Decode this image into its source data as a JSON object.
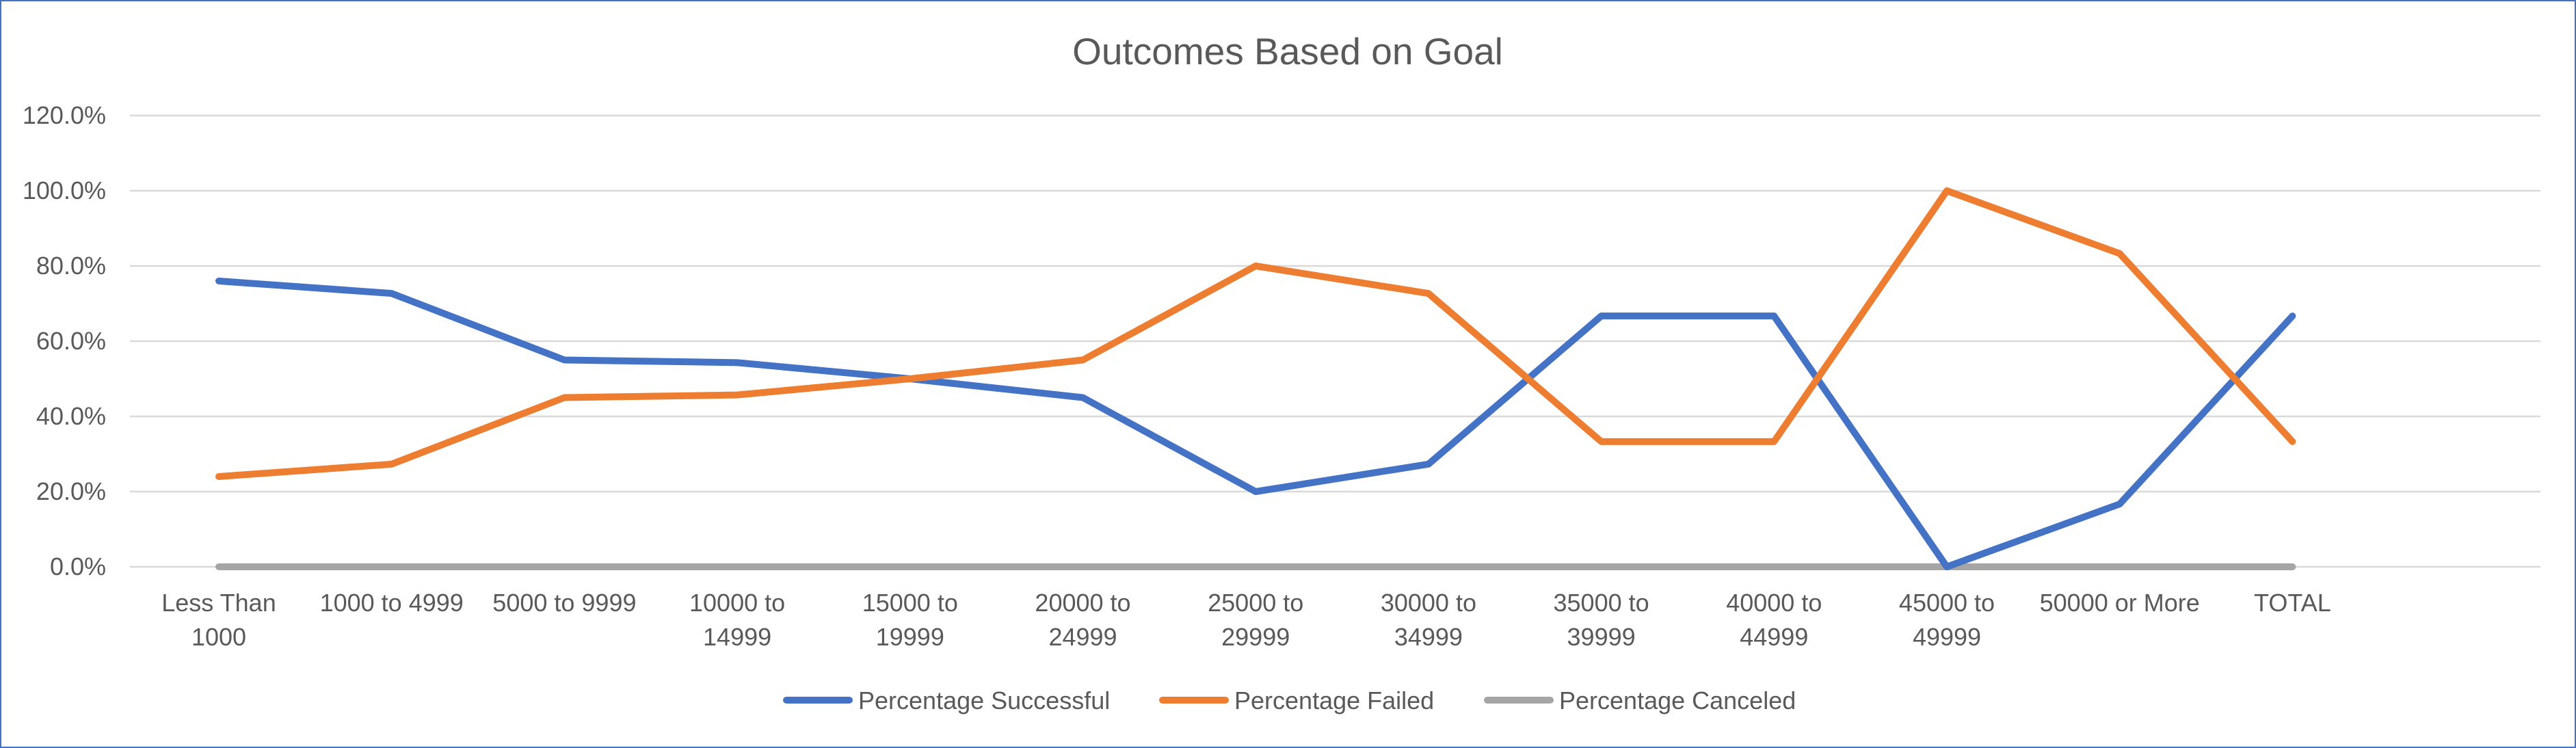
{
  "chart_data": {
    "type": "line",
    "title": "Outcomes Based on Goal",
    "xlabel": "",
    "ylabel": "",
    "ylim": [
      0,
      1.2
    ],
    "y_ticks": [
      "0.0%",
      "20.0%",
      "40.0%",
      "60.0%",
      "80.0%",
      "100.0%",
      "120.0%"
    ],
    "y_tick_values": [
      0,
      0.2,
      0.4,
      0.6,
      0.8,
      1.0,
      1.2
    ],
    "grid": true,
    "legend_position": "bottom",
    "categories": [
      [
        "Less Than",
        "1000"
      ],
      [
        "1000 to 4999"
      ],
      [
        "5000 to 9999"
      ],
      [
        "10000 to",
        "14999"
      ],
      [
        "15000 to",
        "19999"
      ],
      [
        "20000 to",
        "24999"
      ],
      [
        "25000 to",
        "29999"
      ],
      [
        "30000 to",
        "34999"
      ],
      [
        "35000 to",
        "39999"
      ],
      [
        "40000 to",
        "44999"
      ],
      [
        "45000 to",
        "49999"
      ],
      [
        "50000 or More"
      ],
      [
        "TOTAL"
      ]
    ],
    "series": [
      {
        "name": "Percentage Successful",
        "color": "#4472c4",
        "values": [
          0.76,
          0.727,
          0.55,
          0.543,
          0.5,
          0.45,
          0.2,
          0.273,
          0.667,
          0.667,
          0.0,
          0.167,
          0.667
        ]
      },
      {
        "name": "Percentage Failed",
        "color": "#ed7d31",
        "values": [
          0.24,
          0.273,
          0.45,
          0.457,
          0.5,
          0.55,
          0.8,
          0.727,
          0.333,
          0.333,
          1.0,
          0.833,
          0.333
        ]
      },
      {
        "name": "Percentage Canceled",
        "color": "#a5a5a5",
        "values": [
          0,
          0,
          0,
          0,
          0,
          0,
          0,
          0,
          0,
          0,
          0,
          0,
          0
        ]
      }
    ]
  }
}
